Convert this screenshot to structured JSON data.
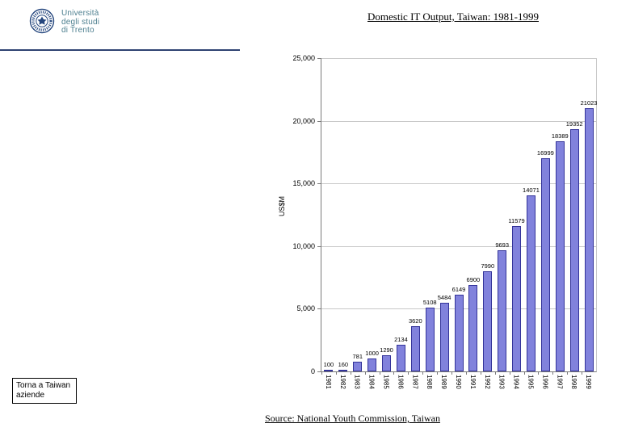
{
  "header": {
    "university_name_line1": "Università",
    "university_name_line2": "degli studi",
    "university_name_line3": "di Trento",
    "rule_color": "#2e4272",
    "logo_color": "#26477e",
    "text_color": "#4d7f8f"
  },
  "title": "Domestic IT Output, Taiwan: 1981-1999",
  "source": "Source: National Youth Commission, Taiwan",
  "back_link": "Torna a Taiwan aziende",
  "chart_data": {
    "type": "bar",
    "title": "Domestic IT Output, Taiwan: 1981-1999",
    "xlabel": "",
    "ylabel": "US$M",
    "ylim": [
      0,
      25000
    ],
    "grid": true,
    "legend": "none",
    "bar_fill": "#8182dc",
    "bar_border": "#333399",
    "ytick_values": [
      0,
      5000,
      10000,
      15000,
      20000,
      25000
    ],
    "ytick_labels": [
      "0",
      "5,000",
      "10,000",
      "15,000",
      "20,000",
      "25,000"
    ],
    "categories": [
      "1981",
      "1982",
      "1983",
      "1984",
      "1985",
      "1986",
      "1987",
      "1988",
      "1989",
      "1990",
      "1991",
      "1992",
      "1993",
      "1994",
      "1995",
      "1996",
      "1997",
      "1998",
      "1999"
    ],
    "values": [
      100,
      160,
      781,
      1000,
      1290,
      2134,
      3620,
      5108,
      5484,
      6149,
      6900,
      7990,
      9693,
      11579,
      14071,
      16999,
      18389,
      19352,
      21023
    ],
    "value_labels": [
      "100",
      "160",
      "781",
      "1000",
      "1290",
      "2134",
      "3620",
      "5108",
      "5484",
      "6149",
      "6900",
      "7990",
      "9693",
      "11579",
      "14071",
      "16999",
      "18389",
      "19352",
      "21023"
    ]
  }
}
